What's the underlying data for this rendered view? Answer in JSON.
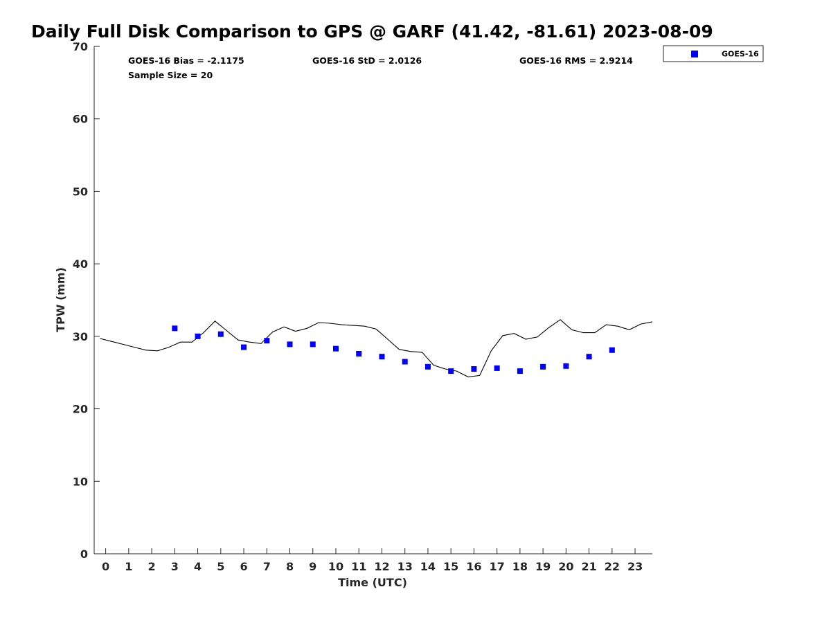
{
  "chart_data": {
    "type": "scatter",
    "title": "Daily Full Disk Comparison to GPS @ GARF (41.42, -81.61) 2023-08-09",
    "xlabel": "Time (UTC)",
    "ylabel": "TPW (mm)",
    "xlim": [
      -0.5,
      23.75
    ],
    "ylim": [
      0,
      70
    ],
    "x_ticks": [
      0,
      1,
      2,
      3,
      4,
      5,
      6,
      7,
      8,
      9,
      10,
      11,
      12,
      13,
      14,
      15,
      16,
      17,
      18,
      19,
      20,
      21,
      22,
      23
    ],
    "y_ticks": [
      0,
      10,
      20,
      30,
      40,
      50,
      60,
      70
    ],
    "grid": false,
    "legend_position": "top-right outside",
    "series": [
      {
        "name": "GOES-16",
        "kind": "markers",
        "marker": "square",
        "color": "#0000ff",
        "x": [
          3,
          4,
          5,
          6,
          7,
          8,
          9,
          10,
          11,
          12,
          13,
          14,
          15,
          16,
          17,
          18,
          19,
          20,
          21,
          22
        ],
        "y": [
          31.1,
          30.0,
          30.3,
          28.5,
          29.4,
          28.9,
          28.9,
          28.3,
          27.6,
          27.2,
          26.5,
          25.8,
          25.2,
          25.5,
          25.6,
          25.2,
          25.8,
          25.9,
          27.2,
          28.1
        ]
      },
      {
        "kind": "line",
        "color": "#000000",
        "x": [
          -0.25,
          0.25,
          0.75,
          1.25,
          1.75,
          2.25,
          2.75,
          3.25,
          3.75,
          4.25,
          4.75,
          5.25,
          5.75,
          6.25,
          6.75,
          7.25,
          7.75,
          8.25,
          8.75,
          9.25,
          9.75,
          10.25,
          10.75,
          11.25,
          11.75,
          12.25,
          12.75,
          13.25,
          13.75,
          14.25,
          14.75,
          15.25,
          15.75,
          16.25,
          16.75,
          17.25,
          17.75,
          18.25,
          18.75,
          19.25,
          19.75,
          20.25,
          20.75,
          21.25,
          21.75,
          22.25,
          22.75,
          23.25,
          23.75
        ],
        "y": [
          29.7,
          29.3,
          28.9,
          28.5,
          28.1,
          28.0,
          28.5,
          29.2,
          29.2,
          30.5,
          32.1,
          30.8,
          29.5,
          29.2,
          29.0,
          30.6,
          31.3,
          30.7,
          31.1,
          31.9,
          31.8,
          31.6,
          31.5,
          31.4,
          31.0,
          29.6,
          28.2,
          27.9,
          27.8,
          26.0,
          25.5,
          25.2,
          24.4,
          24.6,
          28.0,
          30.1,
          30.4,
          29.6,
          29.9,
          31.2,
          32.3,
          30.9,
          30.5,
          30.5,
          31.6,
          31.4,
          30.9,
          31.7,
          32.0
        ]
      }
    ],
    "annotations": {
      "bias": "GOES-16 Bias = -2.1175",
      "std": "GOES-16 StD = 2.0126",
      "rms": "GOES-16 RMS = 2.9214",
      "sample_size": "Sample Size = 20"
    }
  }
}
